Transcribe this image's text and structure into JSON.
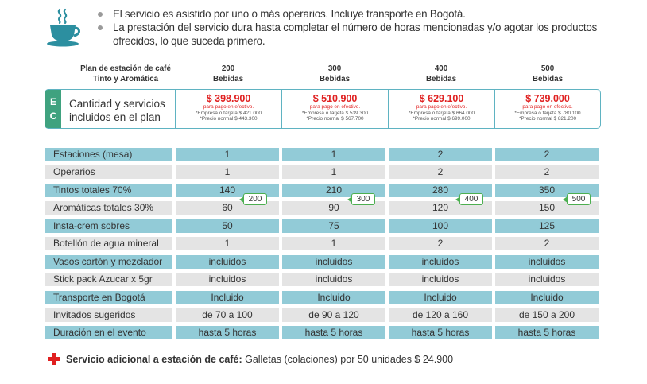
{
  "bullets": [
    "El servicio es asistido por uno o más operarios. Incluye transporte en Bogotá.",
    "La prestación del servicio dura hasta completar el número de horas mencionadas y/o agotar los productos ofrecidos, lo que suceda primero."
  ],
  "header": {
    "plan_title_1": "Plan de estación de café",
    "plan_title_2": "Tinto y Aromática",
    "columns": [
      {
        "count": "200",
        "unit": "Bebidas"
      },
      {
        "count": "300",
        "unit": "Bebidas"
      },
      {
        "count": "400",
        "unit": "Bebidas"
      },
      {
        "count": "500",
        "unit": "Bebidas"
      }
    ]
  },
  "plan": {
    "badge_1": "E",
    "badge_2": "C",
    "label_1": "Cantidad y servicios",
    "label_2": "incluidos en el plan",
    "prices": [
      {
        "price": "$ 398.900",
        "cash_note": "para pago en efectivo.",
        "card_note": "*Empresa o tarjeta $ 421.000",
        "normal_note": "*Precio normal $ 443.300"
      },
      {
        "price": "$ 510.900",
        "cash_note": "para pago en efectivo.",
        "card_note": "*Empresa o tarjeta $ 539.300",
        "normal_note": "*Precio normal $ 567.700"
      },
      {
        "price": "$ 629.100",
        "cash_note": "para pago en efectivo.",
        "card_note": "*Empresa o tarjeta $ 664.000",
        "normal_note": "*Precio normal $ 699.000"
      },
      {
        "price": "$ 739.000",
        "cash_note": "para pago en efectivo.",
        "card_note": "*Empresa o tarjeta $ 780.100",
        "normal_note": "*Precio normal $ 821.200"
      }
    ]
  },
  "rows": [
    {
      "label": "Estaciones (mesa)",
      "values": [
        "1",
        "1",
        "2",
        "2"
      ]
    },
    {
      "label": "Operarios",
      "values": [
        "1",
        "1",
        "2",
        "2"
      ]
    },
    {
      "label": "Tintos totales 70%",
      "values": [
        "140",
        "210",
        "280",
        "350"
      ]
    },
    {
      "label": "Aromáticas totales 30%",
      "values": [
        "60",
        "90",
        "120",
        "150"
      ]
    },
    {
      "label": "Insta-crem sobres",
      "values": [
        "50",
        "75",
        "100",
        "125"
      ]
    },
    {
      "label": "Botellón de agua mineral",
      "values": [
        "1",
        "1",
        "2",
        "2"
      ]
    },
    {
      "label": "Vasos cartón y mezclador",
      "values": [
        "incluidos",
        "incluidos",
        "incluidos",
        "incluidos"
      ]
    },
    {
      "label": "Stick pack Azucar x 5gr",
      "values": [
        "incluidos",
        "incluidos",
        "incluidos",
        "incluidos"
      ]
    },
    {
      "label": "Transporte en Bogotá",
      "values": [
        "Incluido",
        "Incluido",
        "Incluido",
        "Incluido"
      ]
    },
    {
      "label": "Invitados sugeridos",
      "values": [
        "de 70 a 100",
        "de 90 a 120",
        "de 120 a 160",
        "de 150 a 200"
      ]
    },
    {
      "label": "Duración en el evento",
      "values": [
        "hasta 5 horas",
        "hasta 5 horas",
        "hasta 5 horas",
        "hasta 5 horas"
      ]
    }
  ],
  "totals": [
    "200",
    "300",
    "400",
    "500"
  ],
  "extra": {
    "label": "Servicio adicional a estación de café:",
    "text": "Galletas (colaciones) por 50 unidades $ 24.900"
  },
  "colors": {
    "accent_teal": "#5fb3c2",
    "row_blue": "#92cbd7",
    "row_grey": "#e4e4e4",
    "badge_green": "#3fa27f",
    "price_red": "#e02020"
  },
  "icons": [
    "coffee-cup-icon",
    "plus-cross-icon"
  ]
}
